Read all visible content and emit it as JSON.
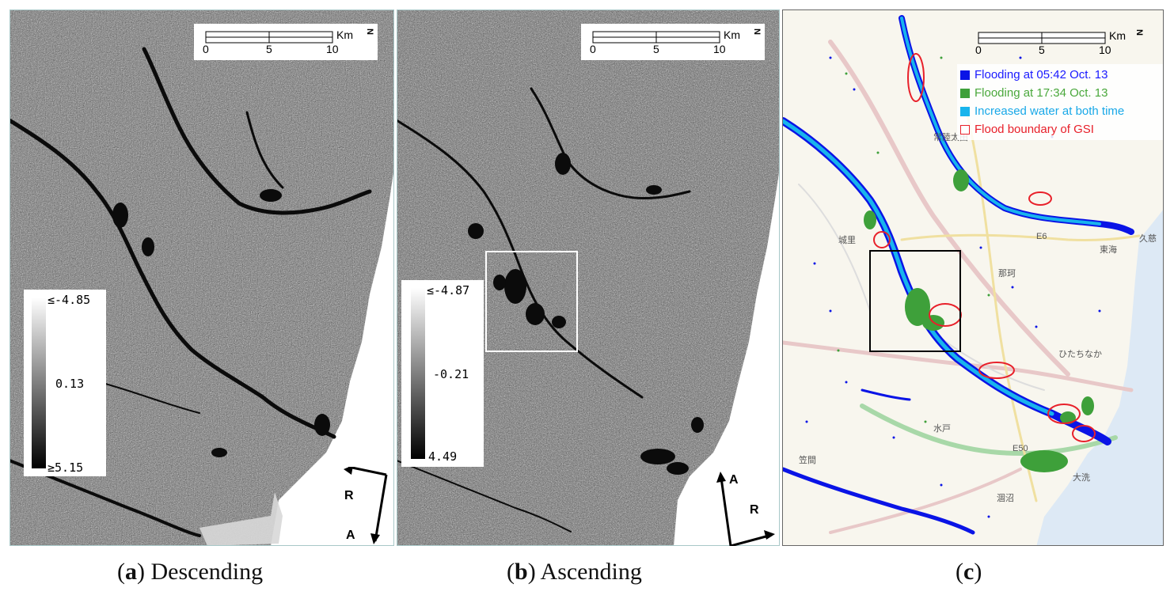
{
  "panels": {
    "a": {
      "caption_letter": "a",
      "caption_text": "Descending",
      "scale": {
        "ticks": [
          "0",
          "5",
          "10"
        ],
        "unit": "Km",
        "north": "N"
      },
      "colorbar": {
        "top": "≤-4.85",
        "mid": "0.13",
        "bottom": "≥5.15"
      },
      "arrows": {
        "range": "R",
        "azimuth": "A"
      }
    },
    "b": {
      "caption_letter": "b",
      "caption_text": "Ascending",
      "scale": {
        "ticks": [
          "0",
          "5",
          "10"
        ],
        "unit": "Km",
        "north": "N"
      },
      "colorbar": {
        "top": "≤-4.87",
        "mid": "-0.21",
        "bottom": "4.49"
      },
      "arrows": {
        "azimuth": "A",
        "range": "R"
      }
    },
    "c": {
      "caption_letter": "c",
      "scale": {
        "ticks": [
          "0",
          "5",
          "10"
        ],
        "unit": "Km",
        "north": "N"
      },
      "legend": [
        {
          "label": "Flooding at 05:42 Oct. 13",
          "color": "#0a14e6",
          "text_color": "#1a1aff",
          "outline": false
        },
        {
          "label": "Flooding at 17:34 Oct. 13",
          "color": "#3ea03a",
          "text_color": "#4aa83c",
          "outline": false
        },
        {
          "label": "Increased water at both time",
          "color": "#18b4ec",
          "text_color": "#18a8e8",
          "outline": false
        },
        {
          "label": "Flood boundary of GSI",
          "color": "#e8202a",
          "text_color": "#e8202a",
          "outline": true
        }
      ],
      "map_labels": [
        "常陸太田",
        "久慈",
        "E6",
        "東海",
        "那珂",
        "ひたちなか",
        "水戸",
        "笠間",
        "E50",
        "大洗",
        "涸沼",
        "城里"
      ]
    }
  },
  "colors": {
    "flood_blue": "#0a14e6",
    "flood_green": "#3ea03a",
    "flood_cyan": "#18b4ec",
    "flood_red": "#e8202a",
    "sea": "#dde9f5",
    "land": "#f8f6ee"
  }
}
